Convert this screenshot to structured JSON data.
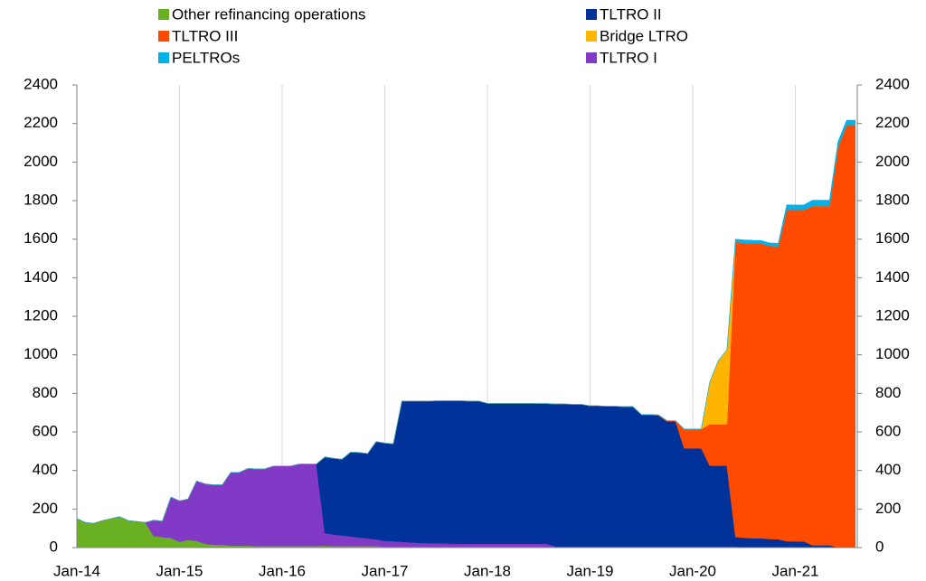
{
  "chart_data": {
    "type": "stacked_area",
    "categories": [
      "Jan-14",
      null,
      null,
      null,
      null,
      null,
      null,
      null,
      null,
      null,
      null,
      null,
      "Jan-15",
      null,
      null,
      null,
      null,
      null,
      null,
      null,
      null,
      null,
      null,
      null,
      "Jan-16",
      null,
      null,
      null,
      null,
      null,
      null,
      null,
      null,
      null,
      null,
      null,
      "Jan-17",
      null,
      null,
      null,
      null,
      null,
      null,
      null,
      null,
      null,
      null,
      null,
      "Jan-18",
      null,
      null,
      null,
      null,
      null,
      null,
      null,
      null,
      null,
      null,
      null,
      "Jan-19",
      null,
      null,
      null,
      null,
      null,
      null,
      null,
      null,
      null,
      null,
      null,
      "Jan-20",
      null,
      null,
      null,
      null,
      null,
      null,
      null,
      null,
      null,
      null,
      null,
      "Jan-21",
      null,
      null,
      null,
      null,
      null,
      null,
      null
    ],
    "series": [
      {
        "name": "Other refinancing operations",
        "color": "#6ab023",
        "values": [
          150,
          130,
          125,
          140,
          150,
          160,
          140,
          135,
          130,
          60,
          55,
          50,
          30,
          40,
          35,
          20,
          15,
          15,
          10,
          10,
          10,
          8,
          8,
          8,
          8,
          8,
          8,
          8,
          8,
          10,
          8,
          8,
          8,
          8,
          8,
          8,
          5,
          5,
          5,
          5,
          5,
          5,
          5,
          5,
          5,
          5,
          5,
          5,
          5,
          5,
          5,
          5,
          5,
          5,
          5,
          5,
          5,
          5,
          5,
          5,
          5,
          5,
          5,
          5,
          5,
          5,
          5,
          5,
          5,
          5,
          5,
          5,
          5,
          5,
          5,
          5,
          5,
          5,
          3,
          3,
          3,
          3,
          3,
          3,
          2,
          2,
          2,
          2,
          2,
          2,
          2,
          2
        ]
      },
      {
        "name": "TLTRO I",
        "color": "#8139c6",
        "values": [
          0,
          0,
          0,
          0,
          0,
          0,
          0,
          0,
          0,
          82,
          82,
          212,
          212,
          212,
          310,
          310,
          310,
          310,
          380,
          380,
          400,
          400,
          400,
          415,
          415,
          415,
          425,
          425,
          425,
          65,
          60,
          55,
          50,
          45,
          40,
          35,
          30,
          28,
          25,
          22,
          20,
          18,
          18,
          18,
          16,
          16,
          15,
          15,
          15,
          15,
          15,
          15,
          15,
          15,
          15,
          15,
          0,
          0,
          0,
          0,
          0,
          0,
          0,
          0,
          0,
          0,
          0,
          0,
          0,
          0,
          0,
          0,
          0,
          0,
          0,
          0,
          0,
          0,
          0,
          0,
          0,
          0,
          0,
          0,
          0,
          0,
          0,
          0,
          0,
          0,
          0,
          0
        ]
      },
      {
        "name": "TLTRO II",
        "color": "#003299",
        "values": [
          0,
          0,
          0,
          0,
          0,
          0,
          0,
          0,
          0,
          0,
          0,
          0,
          0,
          0,
          0,
          0,
          0,
          0,
          0,
          0,
          0,
          0,
          0,
          0,
          0,
          0,
          0,
          0,
          0,
          395,
          395,
          395,
          437,
          440,
          440,
          507,
          507,
          505,
          730,
          733,
          735,
          737,
          738,
          738,
          740,
          740,
          740,
          740,
          728,
          728,
          728,
          728,
          728,
          728,
          727,
          727,
          740,
          740,
          738,
          738,
          730,
          730,
          728,
          728,
          726,
          726,
          685,
          685,
          680,
          650,
          650,
          510,
          510,
          510,
          420,
          420,
          420,
          50,
          48,
          46,
          45,
          42,
          40,
          30,
          30,
          30,
          10,
          10,
          10,
          0,
          0,
          0
        ]
      },
      {
        "name": "TLTRO III",
        "color": "#ff4b00",
        "values": [
          0,
          0,
          0,
          0,
          0,
          0,
          0,
          0,
          0,
          0,
          0,
          0,
          0,
          0,
          0,
          0,
          0,
          0,
          0,
          0,
          0,
          0,
          0,
          0,
          0,
          0,
          0,
          0,
          0,
          0,
          0,
          0,
          0,
          0,
          0,
          0,
          0,
          0,
          0,
          0,
          0,
          0,
          0,
          0,
          0,
          0,
          0,
          0,
          0,
          0,
          0,
          0,
          0,
          0,
          0,
          0,
          0,
          0,
          0,
          0,
          0,
          0,
          0,
          0,
          0,
          0,
          0,
          0,
          3,
          3,
          3,
          100,
          100,
          100,
          215,
          215,
          215,
          1530,
          1530,
          1530,
          1530,
          1520,
          1520,
          1720,
          1720,
          1720,
          1760,
          1760,
          1760,
          2080,
          2190,
          2190
        ]
      },
      {
        "name": "Bridge LTRO",
        "color": "#ffb400",
        "values": [
          0,
          0,
          0,
          0,
          0,
          0,
          0,
          0,
          0,
          0,
          0,
          0,
          0,
          0,
          0,
          0,
          0,
          0,
          0,
          0,
          0,
          0,
          0,
          0,
          0,
          0,
          0,
          0,
          0,
          0,
          0,
          0,
          0,
          0,
          0,
          0,
          0,
          0,
          0,
          0,
          0,
          0,
          0,
          0,
          0,
          0,
          0,
          0,
          0,
          0,
          0,
          0,
          0,
          0,
          0,
          0,
          0,
          0,
          0,
          0,
          0,
          0,
          0,
          0,
          0,
          0,
          0,
          0,
          0,
          0,
          0,
          0,
          0,
          0,
          220,
          330,
          385,
          0,
          0,
          0,
          0,
          0,
          0,
          0,
          0,
          0,
          0,
          0,
          0,
          0,
          0,
          0
        ]
      },
      {
        "name": "PELTROs",
        "color": "#00b1ea",
        "values": [
          0,
          0,
          0,
          0,
          0,
          0,
          0,
          0,
          0,
          0,
          0,
          0,
          0,
          0,
          0,
          0,
          0,
          0,
          0,
          0,
          0,
          0,
          0,
          0,
          0,
          0,
          0,
          0,
          0,
          0,
          0,
          0,
          0,
          0,
          0,
          0,
          0,
          0,
          0,
          0,
          0,
          0,
          0,
          0,
          0,
          0,
          0,
          0,
          0,
          0,
          0,
          0,
          0,
          0,
          0,
          0,
          0,
          0,
          0,
          0,
          0,
          0,
          0,
          0,
          0,
          0,
          0,
          0,
          0,
          0,
          0,
          0,
          0,
          0,
          0,
          0,
          0,
          15,
          15,
          15,
          15,
          15,
          15,
          25,
          25,
          25,
          30,
          30,
          30,
          25,
          25,
          25
        ]
      }
    ],
    "ylim": [
      0,
      2400
    ],
    "yticks": [
      0,
      200,
      400,
      600,
      800,
      1000,
      1200,
      1400,
      1600,
      1800,
      2000,
      2200,
      2400
    ],
    "y2lim": [
      0,
      2400
    ],
    "y2ticks": [
      0,
      200,
      400,
      600,
      800,
      1000,
      1200,
      1400,
      1600,
      1800,
      2000,
      2200,
      2400
    ],
    "grid": true
  }
}
